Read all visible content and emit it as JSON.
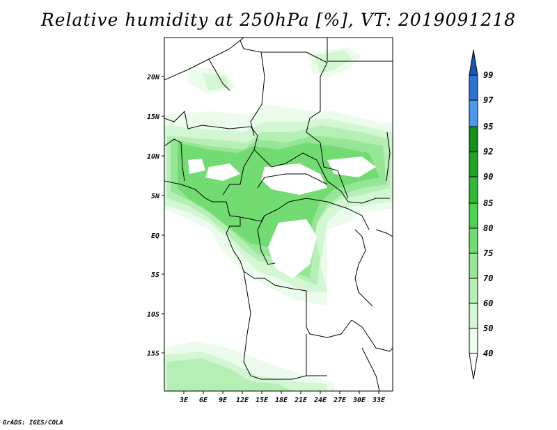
{
  "title": "Relative humidity at 250hPa [%], VT: 2019091218",
  "credit": "GrADS: IGES/COLA",
  "map": {
    "lat_labels": [
      "20N",
      "15N",
      "10N",
      "5N",
      "EQ",
      "5S",
      "10S",
      "15S"
    ],
    "lon_labels": [
      "3E",
      "6E",
      "9E",
      "12E",
      "15E",
      "18E",
      "21E",
      "24E",
      "27E",
      "30E",
      "33E"
    ]
  },
  "colorbar": {
    "levels": [
      "99",
      "97",
      "95",
      "92",
      "90",
      "85",
      "80",
      "75",
      "70",
      "60",
      "50",
      "40"
    ],
    "colors": {
      "c95_97": "#4f9ae8",
      "c97_99": "#2d73d4",
      "c99": "#1857b5",
      "c92_95": "#14901a",
      "c90_92": "#1ea325",
      "c85_90": "#33b93a",
      "c80_85": "#4fd24f",
      "c75_80": "#72dc72",
      "c70_75": "#96e696",
      "c60_70": "#b6efb6",
      "c50_60": "#d3f6d3",
      "c40_50": "#ecfcec"
    }
  }
}
